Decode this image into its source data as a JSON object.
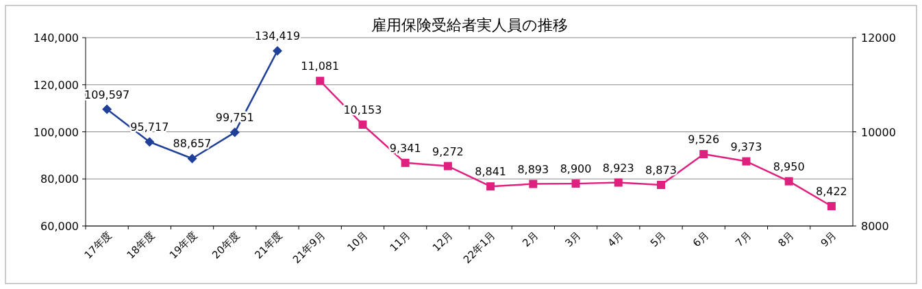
{
  "chart_data": {
    "type": "line",
    "title": "雇用保険受給者実人員の推移",
    "categories": [
      "17年度",
      "18年度",
      "19年度",
      "20年度",
      "21年度",
      "21年9月",
      "10月",
      "11月",
      "12月",
      "22年1月",
      "2月",
      "3月",
      "4月",
      "5月",
      "6月",
      "7月",
      "8月",
      "9月"
    ],
    "series": [
      {
        "color": "#1f3f99",
        "marker": "diamond",
        "axis": "y",
        "values": [
          109597,
          95717,
          88657,
          99751,
          134419,
          null,
          null,
          null,
          null,
          null,
          null,
          null,
          null,
          null,
          null,
          null,
          null,
          null
        ],
        "value_labels": [
          "109,597",
          "95,717",
          "88,657",
          "99,751",
          "134,419",
          null,
          null,
          null,
          null,
          null,
          null,
          null,
          null,
          null,
          null,
          null,
          null,
          null
        ]
      },
      {
        "color": "#e0207f",
        "marker": "square",
        "axis": "y2",
        "values": [
          null,
          null,
          null,
          null,
          null,
          11081,
          10153,
          9341,
          9272,
          8841,
          8893,
          8900,
          8923,
          8873,
          9526,
          9373,
          8950,
          8422
        ],
        "value_labels": [
          null,
          null,
          null,
          null,
          null,
          "11,081",
          "10,153",
          "9,341",
          "9,272",
          "8,841",
          "8,893",
          "8,900",
          "8,923",
          "8,873",
          "9,526",
          "9,373",
          "8,950",
          "8,422"
        ]
      }
    ],
    "ylim": [
      60000,
      140000
    ],
    "yticks": [
      {
        "value": 60000,
        "label": "60,000"
      },
      {
        "value": 80000,
        "label": "80,000"
      },
      {
        "value": 100000,
        "label": "100,000"
      },
      {
        "value": 120000,
        "label": "120,000"
      },
      {
        "value": 140000,
        "label": "140,000"
      }
    ],
    "y2lim": [
      8000,
      12000
    ],
    "y2ticks": [
      8000,
      10000,
      12000
    ],
    "grid": "y"
  }
}
